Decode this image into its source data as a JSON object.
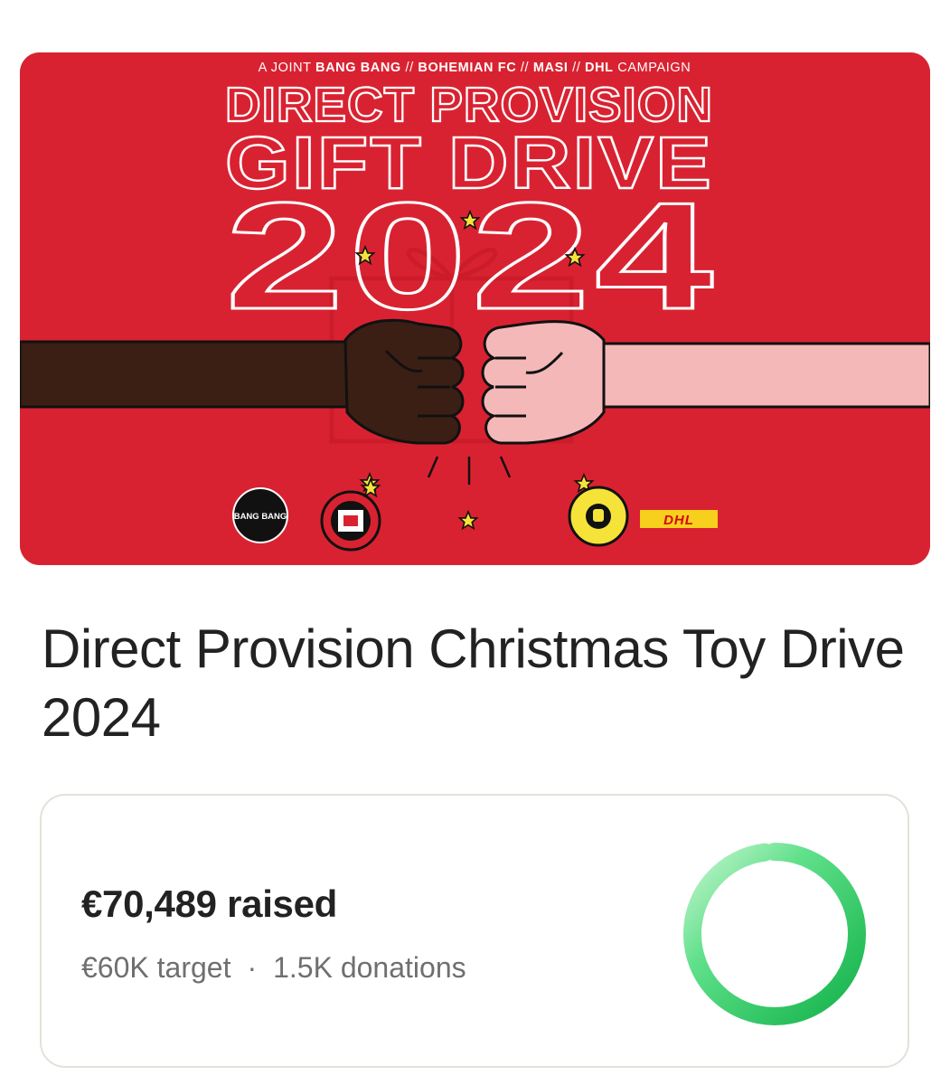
{
  "banner": {
    "header_prefix": "A JOINT",
    "header_org1": "BANG BANG",
    "header_sep1": "//",
    "header_org2": "BOHEMIAN FC",
    "header_sep2": "//",
    "header_org3": "MASI",
    "header_sep3": "//",
    "header_org4": "DHL",
    "header_suffix": "CAMPAIGN",
    "line1": "DIRECT PROVISION",
    "line2": "GIFT DRIVE",
    "year": "2024",
    "logo_bangbang": "BANG BANG",
    "logo_dhl": "DHL",
    "colors": {
      "background": "#d92231",
      "dark_arm": "#3b1f14",
      "light_arm": "#f4b8b8",
      "star": "#f5e33a"
    }
  },
  "campaign": {
    "title": "Direct Provision Christmas Toy Drive 2024"
  },
  "stats": {
    "raised": "€70,489 raised",
    "target": "€60K target",
    "separator": "·",
    "donations": "1.5K donations",
    "progress_fraction": 1.0,
    "ring_colors": [
      "#b8f0c5",
      "#1fb84f"
    ]
  }
}
